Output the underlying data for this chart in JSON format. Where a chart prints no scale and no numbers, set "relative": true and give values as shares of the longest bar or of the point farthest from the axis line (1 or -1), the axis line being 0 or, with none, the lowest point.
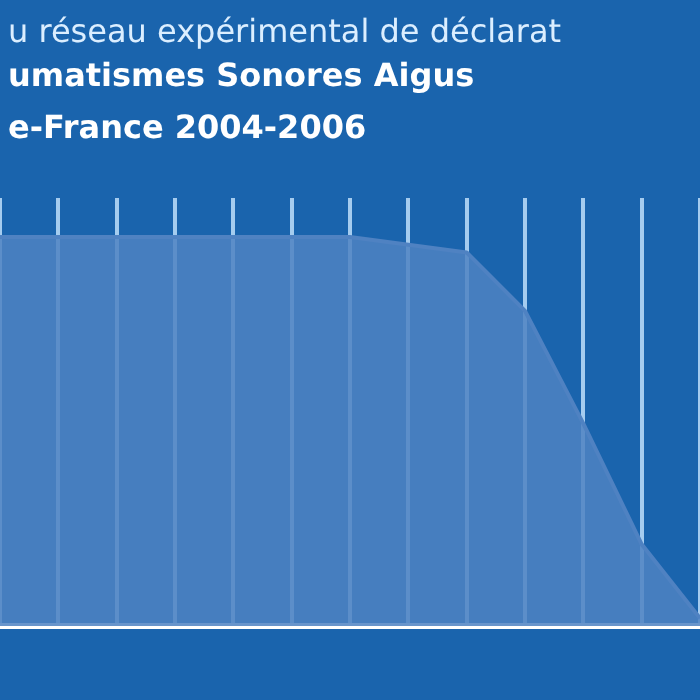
{
  "chart_data": {
    "type": "area",
    "title": "u réseau expérimental de déclarat",
    "subtitle": "umatismes Sonores Aigus\ne-France 2004-2006",
    "categories": [
      null,
      null,
      null,
      null,
      null,
      null,
      null,
      null,
      null,
      null,
      null,
      null,
      null
    ],
    "series": [
      {
        "color": "#4f82c2",
        "values": [
          1,
          1,
          1,
          1,
          1,
          1,
          1,
          0.98,
          0.96,
          0.81,
          0.52,
          0.21,
          0.02
        ]
      }
    ],
    "relative": true,
    "grid": "x",
    "legend": false,
    "marker": "none"
  }
}
